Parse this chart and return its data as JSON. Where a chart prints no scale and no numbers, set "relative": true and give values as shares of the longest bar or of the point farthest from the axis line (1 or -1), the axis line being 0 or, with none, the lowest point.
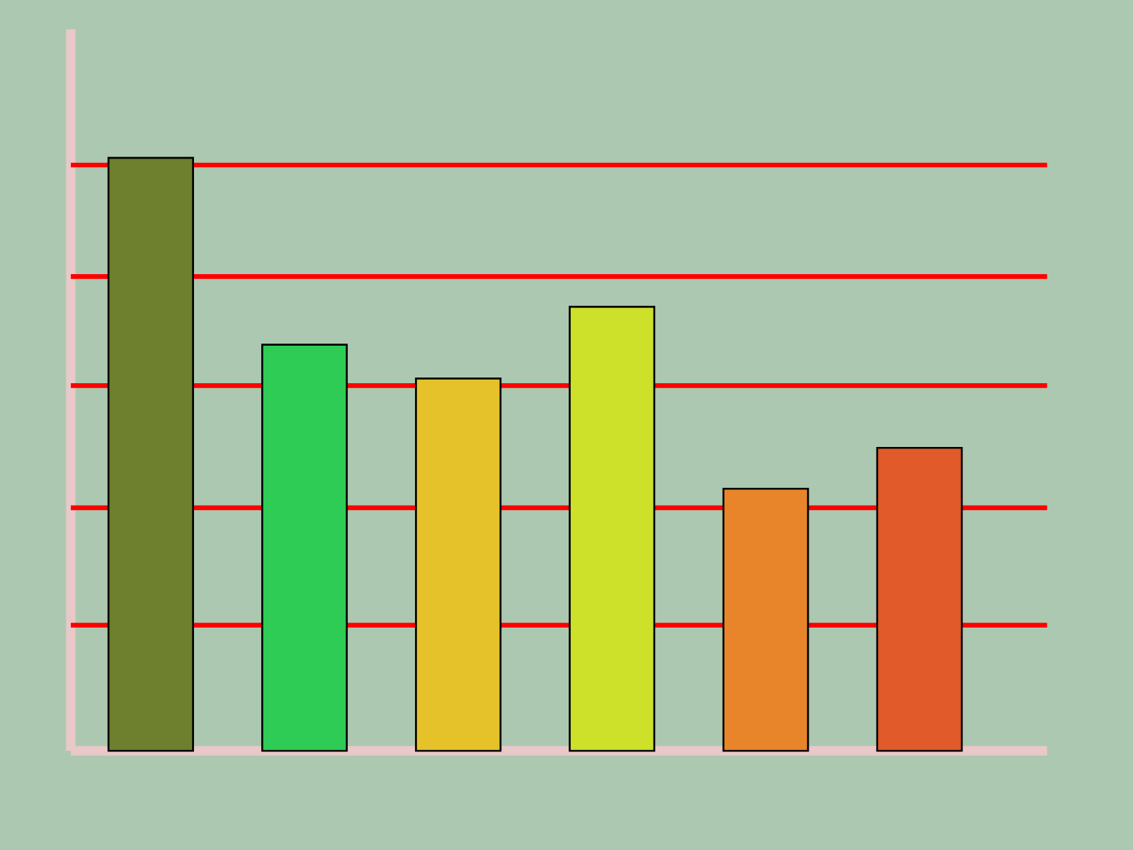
{
  "chart_data": {
    "type": "bar",
    "relative": true,
    "ref_lines": [
      {
        "axis": "y",
        "value": 0.988,
        "color": "#ff0000"
      },
      {
        "axis": "y",
        "value": 0.8,
        "color": "#ff0000"
      },
      {
        "axis": "y",
        "value": 0.616,
        "color": "#ff0000"
      },
      {
        "axis": "y",
        "value": 0.41,
        "color": "#ff0000"
      },
      {
        "axis": "y",
        "value": 0.212,
        "color": "#ff0000"
      }
    ],
    "categories": [
      null,
      null,
      null,
      null,
      null,
      null
    ],
    "values": [
      1,
      0.685,
      0.628,
      0.749,
      0.442,
      0.511
    ],
    "colors": [
      "#6e7f2e",
      "#2ecc55",
      "#e6c22a",
      "#cde02a",
      "#e8852a",
      "#e05a2a"
    ]
  }
}
